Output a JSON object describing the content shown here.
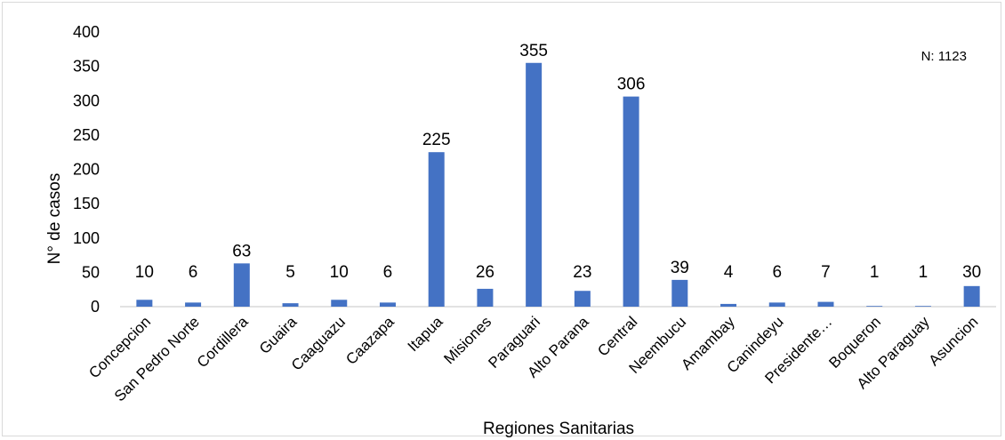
{
  "chart_data": {
    "type": "bar",
    "categories": [
      "Concepcion",
      "San Pedro Norte",
      "Cordillera",
      "Guaira",
      "Caaguazu",
      "Caazapa",
      "Itapua",
      "Misiones",
      "Paraguari",
      "Alto Parana",
      "Central",
      "Neembucu",
      "Amambay",
      "Canindeyu",
      "Presidente…",
      "Boqueron",
      "Alto Paraguay",
      "Asuncion"
    ],
    "values": [
      10,
      6,
      63,
      5,
      10,
      6,
      225,
      26,
      355,
      23,
      306,
      39,
      4,
      6,
      7,
      1,
      1,
      30
    ],
    "data_labels": [
      "10",
      "6",
      "63",
      "5",
      "10",
      "6",
      "225",
      "26",
      "355",
      "23",
      "306",
      "39",
      "4",
      "6",
      "7",
      "1",
      "1",
      "30"
    ],
    "yticks": [
      "0",
      "50",
      "100",
      "150",
      "200",
      "250",
      "300",
      "350",
      "400"
    ],
    "ylim": [
      0,
      400
    ],
    "xlabel": "Regiones Sanitarias",
    "ylabel": "N° de casos",
    "annotation": "N: 1123",
    "grid": false,
    "legend": "none",
    "bar_color": "#4472c4",
    "axis_color": "#d9d9d9"
  }
}
